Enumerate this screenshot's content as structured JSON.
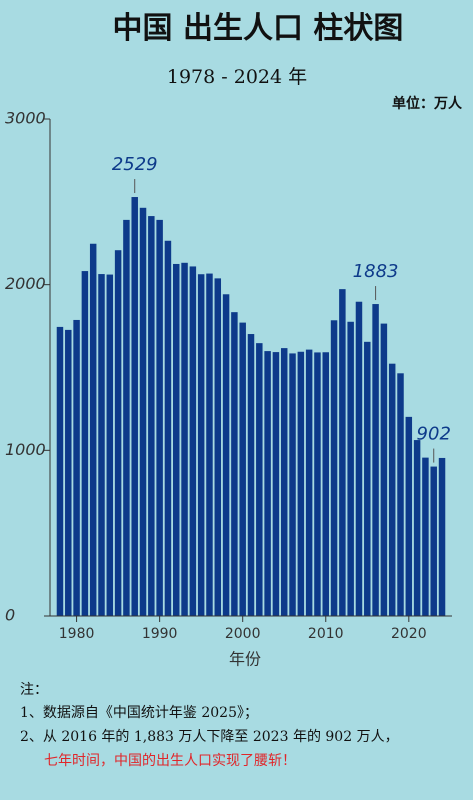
{
  "chart_data": {
    "type": "bar",
    "title": "中国 出生人口 柱状图",
    "subtitle": "1978 - 2024 年",
    "unit_label": "单位：万人",
    "xlabel": "年份",
    "x": [
      1978,
      1979,
      1980,
      1981,
      1982,
      1983,
      1984,
      1985,
      1986,
      1987,
      1988,
      1989,
      1990,
      1991,
      1992,
      1993,
      1994,
      1995,
      1996,
      1997,
      1998,
      1999,
      2000,
      2001,
      2002,
      2003,
      2004,
      2005,
      2006,
      2007,
      2008,
      2009,
      2010,
      2011,
      2012,
      2013,
      2014,
      2015,
      2016,
      2017,
      2018,
      2019,
      2020,
      2021,
      2022,
      2023,
      2024
    ],
    "values": [
      1745,
      1727,
      1787,
      2082,
      2247,
      2064,
      2061,
      2208,
      2391,
      2529,
      2464,
      2414,
      2391,
      2265,
      2125,
      2132,
      2110,
      2063,
      2067,
      2038,
      1942,
      1834,
      1771,
      1702,
      1647,
      1599,
      1593,
      1617,
      1585,
      1595,
      1608,
      1591,
      1592,
      1785,
      1973,
      1776,
      1897,
      1655,
      1883,
      1765,
      1523,
      1465,
      1202,
      1062,
      956,
      902,
      954
    ],
    "value_labels": [
      null,
      null,
      null,
      null,
      null,
      null,
      null,
      null,
      null,
      "2529",
      null,
      null,
      null,
      null,
      null,
      null,
      null,
      null,
      null,
      null,
      null,
      null,
      null,
      null,
      null,
      null,
      null,
      null,
      null,
      null,
      null,
      null,
      null,
      null,
      null,
      null,
      null,
      null,
      "1883",
      null,
      null,
      null,
      null,
      null,
      null,
      "902",
      null
    ],
    "color": "#0d3a8a",
    "xlim": [
      1976.8,
      2025.2
    ],
    "xticks": [
      1980,
      1990,
      2000,
      2010,
      2020
    ],
    "ylim": [
      0,
      3000
    ],
    "yticks": [
      0,
      1000,
      2000,
      3000
    ],
    "notes": {
      "heading": "注：",
      "lines": [
        "1、数据源自《中国统计年鉴 2025》；",
        "2、从 2016 年的 1,883 万人下降至 2023 年的 902 万人，",
        "七年时间，中国的出生人口实现了腰斩！"
      ]
    }
  }
}
